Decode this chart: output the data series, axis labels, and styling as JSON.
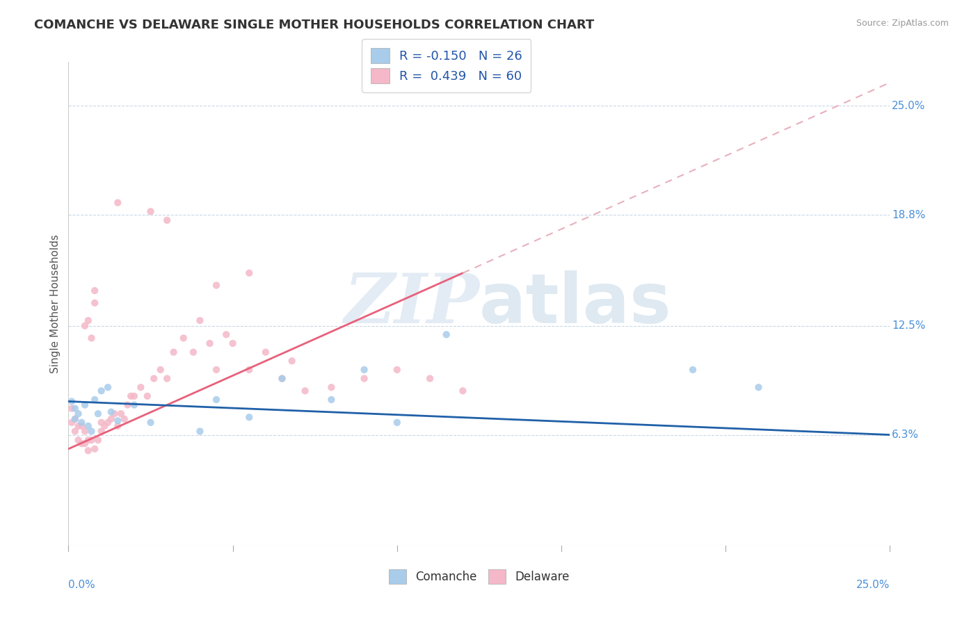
{
  "title": "COMANCHE VS DELAWARE SINGLE MOTHER HOUSEHOLDS CORRELATION CHART",
  "source": "Source: ZipAtlas.com",
  "ylabel": "Single Mother Households",
  "y_tick_labels": [
    "25.0%",
    "18.8%",
    "12.5%",
    "6.3%"
  ],
  "y_tick_values": [
    0.25,
    0.188,
    0.125,
    0.063
  ],
  "xlim": [
    0.0,
    0.25
  ],
  "ylim": [
    0.0,
    0.275
  ],
  "watermark_zip": "ZIP",
  "watermark_atlas": "atlas",
  "legend_comanche_R": "-0.150",
  "legend_comanche_N": "26",
  "legend_delaware_R": "0.439",
  "legend_delaware_N": "60",
  "comanche_scatter_x": [
    0.001,
    0.002,
    0.002,
    0.003,
    0.004,
    0.005,
    0.006,
    0.007,
    0.008,
    0.009,
    0.01,
    0.012,
    0.013,
    0.015,
    0.02,
    0.025,
    0.04,
    0.055,
    0.065,
    0.09,
    0.1,
    0.115,
    0.19,
    0.21,
    0.045,
    0.08
  ],
  "comanche_scatter_y": [
    0.082,
    0.078,
    0.072,
    0.075,
    0.07,
    0.08,
    0.068,
    0.065,
    0.083,
    0.075,
    0.088,
    0.09,
    0.076,
    0.071,
    0.08,
    0.07,
    0.065,
    0.073,
    0.095,
    0.1,
    0.07,
    0.12,
    0.1,
    0.09,
    0.083,
    0.083
  ],
  "delaware_scatter_x": [
    0.001,
    0.001,
    0.002,
    0.002,
    0.003,
    0.003,
    0.004,
    0.004,
    0.005,
    0.005,
    0.006,
    0.006,
    0.007,
    0.008,
    0.009,
    0.01,
    0.01,
    0.011,
    0.012,
    0.013,
    0.014,
    0.015,
    0.016,
    0.017,
    0.018,
    0.019,
    0.02,
    0.022,
    0.024,
    0.026,
    0.028,
    0.03,
    0.032,
    0.035,
    0.038,
    0.04,
    0.043,
    0.045,
    0.048,
    0.05,
    0.055,
    0.06,
    0.065,
    0.068,
    0.072,
    0.08,
    0.09,
    0.1,
    0.11,
    0.12,
    0.03,
    0.025,
    0.015,
    0.008,
    0.055,
    0.045,
    0.005,
    0.006,
    0.007,
    0.008
  ],
  "delaware_scatter_y": [
    0.078,
    0.07,
    0.072,
    0.065,
    0.068,
    0.06,
    0.068,
    0.058,
    0.065,
    0.058,
    0.06,
    0.054,
    0.06,
    0.055,
    0.06,
    0.07,
    0.065,
    0.068,
    0.07,
    0.072,
    0.075,
    0.068,
    0.075,
    0.072,
    0.08,
    0.085,
    0.085,
    0.09,
    0.085,
    0.095,
    0.1,
    0.095,
    0.11,
    0.118,
    0.11,
    0.128,
    0.115,
    0.1,
    0.12,
    0.115,
    0.1,
    0.11,
    0.095,
    0.105,
    0.088,
    0.09,
    0.095,
    0.1,
    0.095,
    0.088,
    0.185,
    0.19,
    0.195,
    0.145,
    0.155,
    0.148,
    0.125,
    0.128,
    0.118,
    0.138
  ],
  "comanche_color": "#a8ccea",
  "delaware_color": "#f4b8c8",
  "comanche_line_color": "#2060a8",
  "delaware_line_color": "#e8607a",
  "delaware_dash_color": "#e8b0bc",
  "background_color": "#ffffff",
  "grid_color": "#c8d8e8",
  "title_fontsize": 13,
  "axis_label_fontsize": 11,
  "tick_fontsize": 11,
  "legend_fontsize": 13
}
